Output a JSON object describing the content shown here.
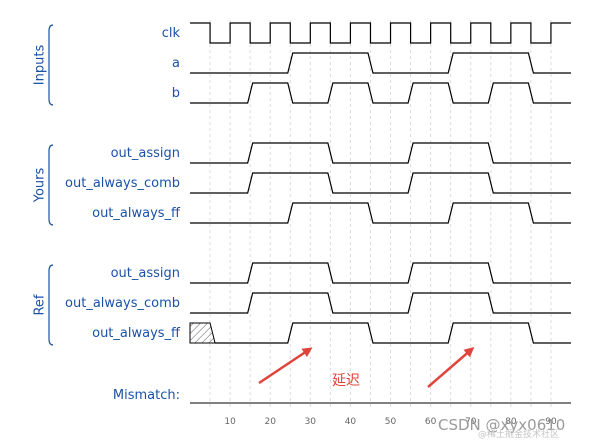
{
  "colors": {
    "label": "#1a52a8",
    "wave": "#000000",
    "grid": "#dcdcdc",
    "annotation": "#e0443a",
    "watermark": "#9a9a9a"
  },
  "groups": [
    {
      "name": "Inputs",
      "signals": [
        {
          "name": "clk",
          "kind": "clock",
          "period": 10,
          "start_level": 1,
          "edge_offset": 0
        },
        {
          "name": "a",
          "kind": "digital",
          "initial": 0,
          "transitions": [
            25,
            45,
            65,
            85
          ]
        },
        {
          "name": "b",
          "kind": "digital",
          "initial": 0,
          "transitions": [
            15,
            25,
            35,
            45,
            55,
            65,
            75,
            85
          ]
        }
      ]
    },
    {
      "name": "Yours",
      "signals": [
        {
          "name": "out_assign",
          "kind": "digital",
          "initial": 0,
          "transitions": [
            15,
            35,
            55,
            75
          ]
        },
        {
          "name": "out_always_comb",
          "kind": "digital",
          "initial": 0,
          "transitions": [
            15,
            35,
            55,
            75
          ]
        },
        {
          "name": "out_always_ff",
          "kind": "digital",
          "initial": 0,
          "transitions": [
            25,
            45,
            65,
            85
          ]
        }
      ]
    },
    {
      "name": "Ref",
      "signals": [
        {
          "name": "out_assign",
          "kind": "digital",
          "initial": 0,
          "transitions": [
            15,
            35,
            55,
            75
          ]
        },
        {
          "name": "out_always_comb",
          "kind": "digital",
          "initial": 0,
          "transitions": [
            15,
            35,
            55,
            75
          ]
        },
        {
          "name": "out_always_ff",
          "kind": "digital",
          "initial": 0,
          "transitions": [
            25,
            45,
            65,
            85
          ],
          "unknown_until": 5
        }
      ]
    }
  ],
  "mismatch": {
    "label": "Mismatch:"
  },
  "time_axis": {
    "min": 0,
    "max": 95,
    "ticks": [
      10,
      20,
      30,
      40,
      50,
      60,
      70,
      80,
      90
    ]
  },
  "annotation": {
    "text": "延迟",
    "arrow_targets_time": [
      30,
      70
    ]
  },
  "watermark": {
    "main": "CSDN @xyx0610",
    "sub": "@稀土掘金技术社区"
  }
}
